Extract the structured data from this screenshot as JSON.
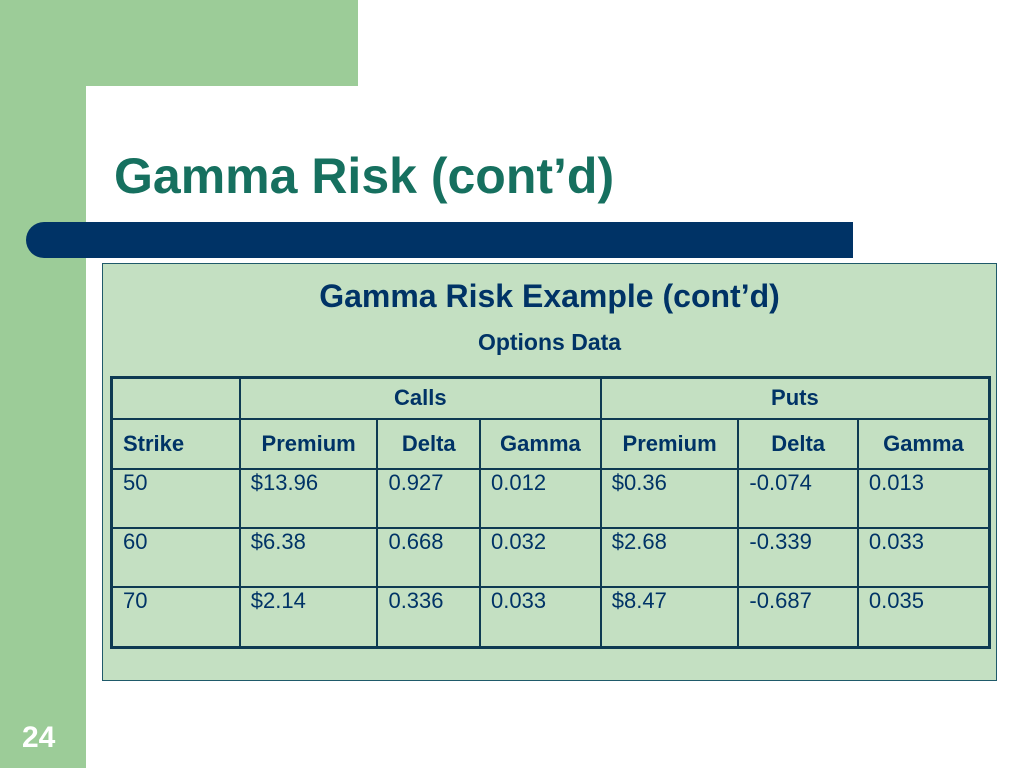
{
  "slide": {
    "title": "Gamma Risk (cont’d)",
    "page_number": "24"
  },
  "example": {
    "title": "Gamma Risk Example (cont’d)",
    "subtitle": "Options Data",
    "groups": {
      "blank": "",
      "calls": "Calls",
      "puts": "Puts"
    },
    "columns": [
      "Strike",
      "Premium",
      "Delta",
      "Gamma",
      "Premium",
      "Delta",
      "Gamma"
    ],
    "rows": [
      [
        "50",
        "$13.96",
        "0.927",
        "0.012",
        "$0.36",
        "-0.074",
        "0.013"
      ],
      [
        "60",
        "$6.38",
        "0.668",
        "0.032",
        "$2.68",
        "-0.339",
        "0.033"
      ],
      [
        "70",
        "$2.14",
        "0.336",
        "0.033",
        "$8.47",
        "-0.687",
        "0.035"
      ]
    ]
  },
  "colors": {
    "accent_green": "#9ccc98",
    "title_teal": "#16705f",
    "navy": "#003366",
    "box_fill": "#c4e0c2"
  }
}
